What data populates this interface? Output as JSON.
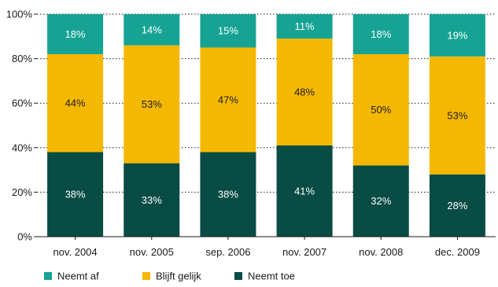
{
  "chart_data": {
    "type": "bar",
    "stacked": true,
    "percent": true,
    "title": "",
    "xlabel": "",
    "ylabel": "",
    "ylim": [
      0,
      100
    ],
    "yticks": [
      "0%",
      "20%",
      "40%",
      "60%",
      "80%",
      "100%"
    ],
    "grid": true,
    "legend_position": "bottom",
    "categories": [
      "nov. 2004",
      "nov. 2005",
      "sep. 2006",
      "nov. 2007",
      "nov. 2008",
      "dec. 2009"
    ],
    "series": [
      {
        "name": "Neemt toe",
        "color": "#084c44",
        "label_color": "#ffffff",
        "values": [
          38,
          33,
          38,
          41,
          32,
          28
        ],
        "labels": [
          "38%",
          "33%",
          "38%",
          "41%",
          "32%",
          "28%"
        ]
      },
      {
        "name": "Blijft gelijk",
        "color": "#f5b800",
        "label_color": "#1a1a1a",
        "values": [
          44,
          53,
          47,
          48,
          50,
          53
        ],
        "labels": [
          "44%",
          "53%",
          "47%",
          "48%",
          "50%",
          "53%"
        ]
      },
      {
        "name": "Neemt af",
        "color": "#16a394",
        "label_color": "#ffffff",
        "values": [
          18,
          14,
          15,
          11,
          18,
          19
        ],
        "labels": [
          "18%",
          "14%",
          "15%",
          "11%",
          "18%",
          "19%"
        ]
      }
    ],
    "legend_order": [
      "Neemt af",
      "Blijft gelijk",
      "Neemt toe"
    ]
  }
}
